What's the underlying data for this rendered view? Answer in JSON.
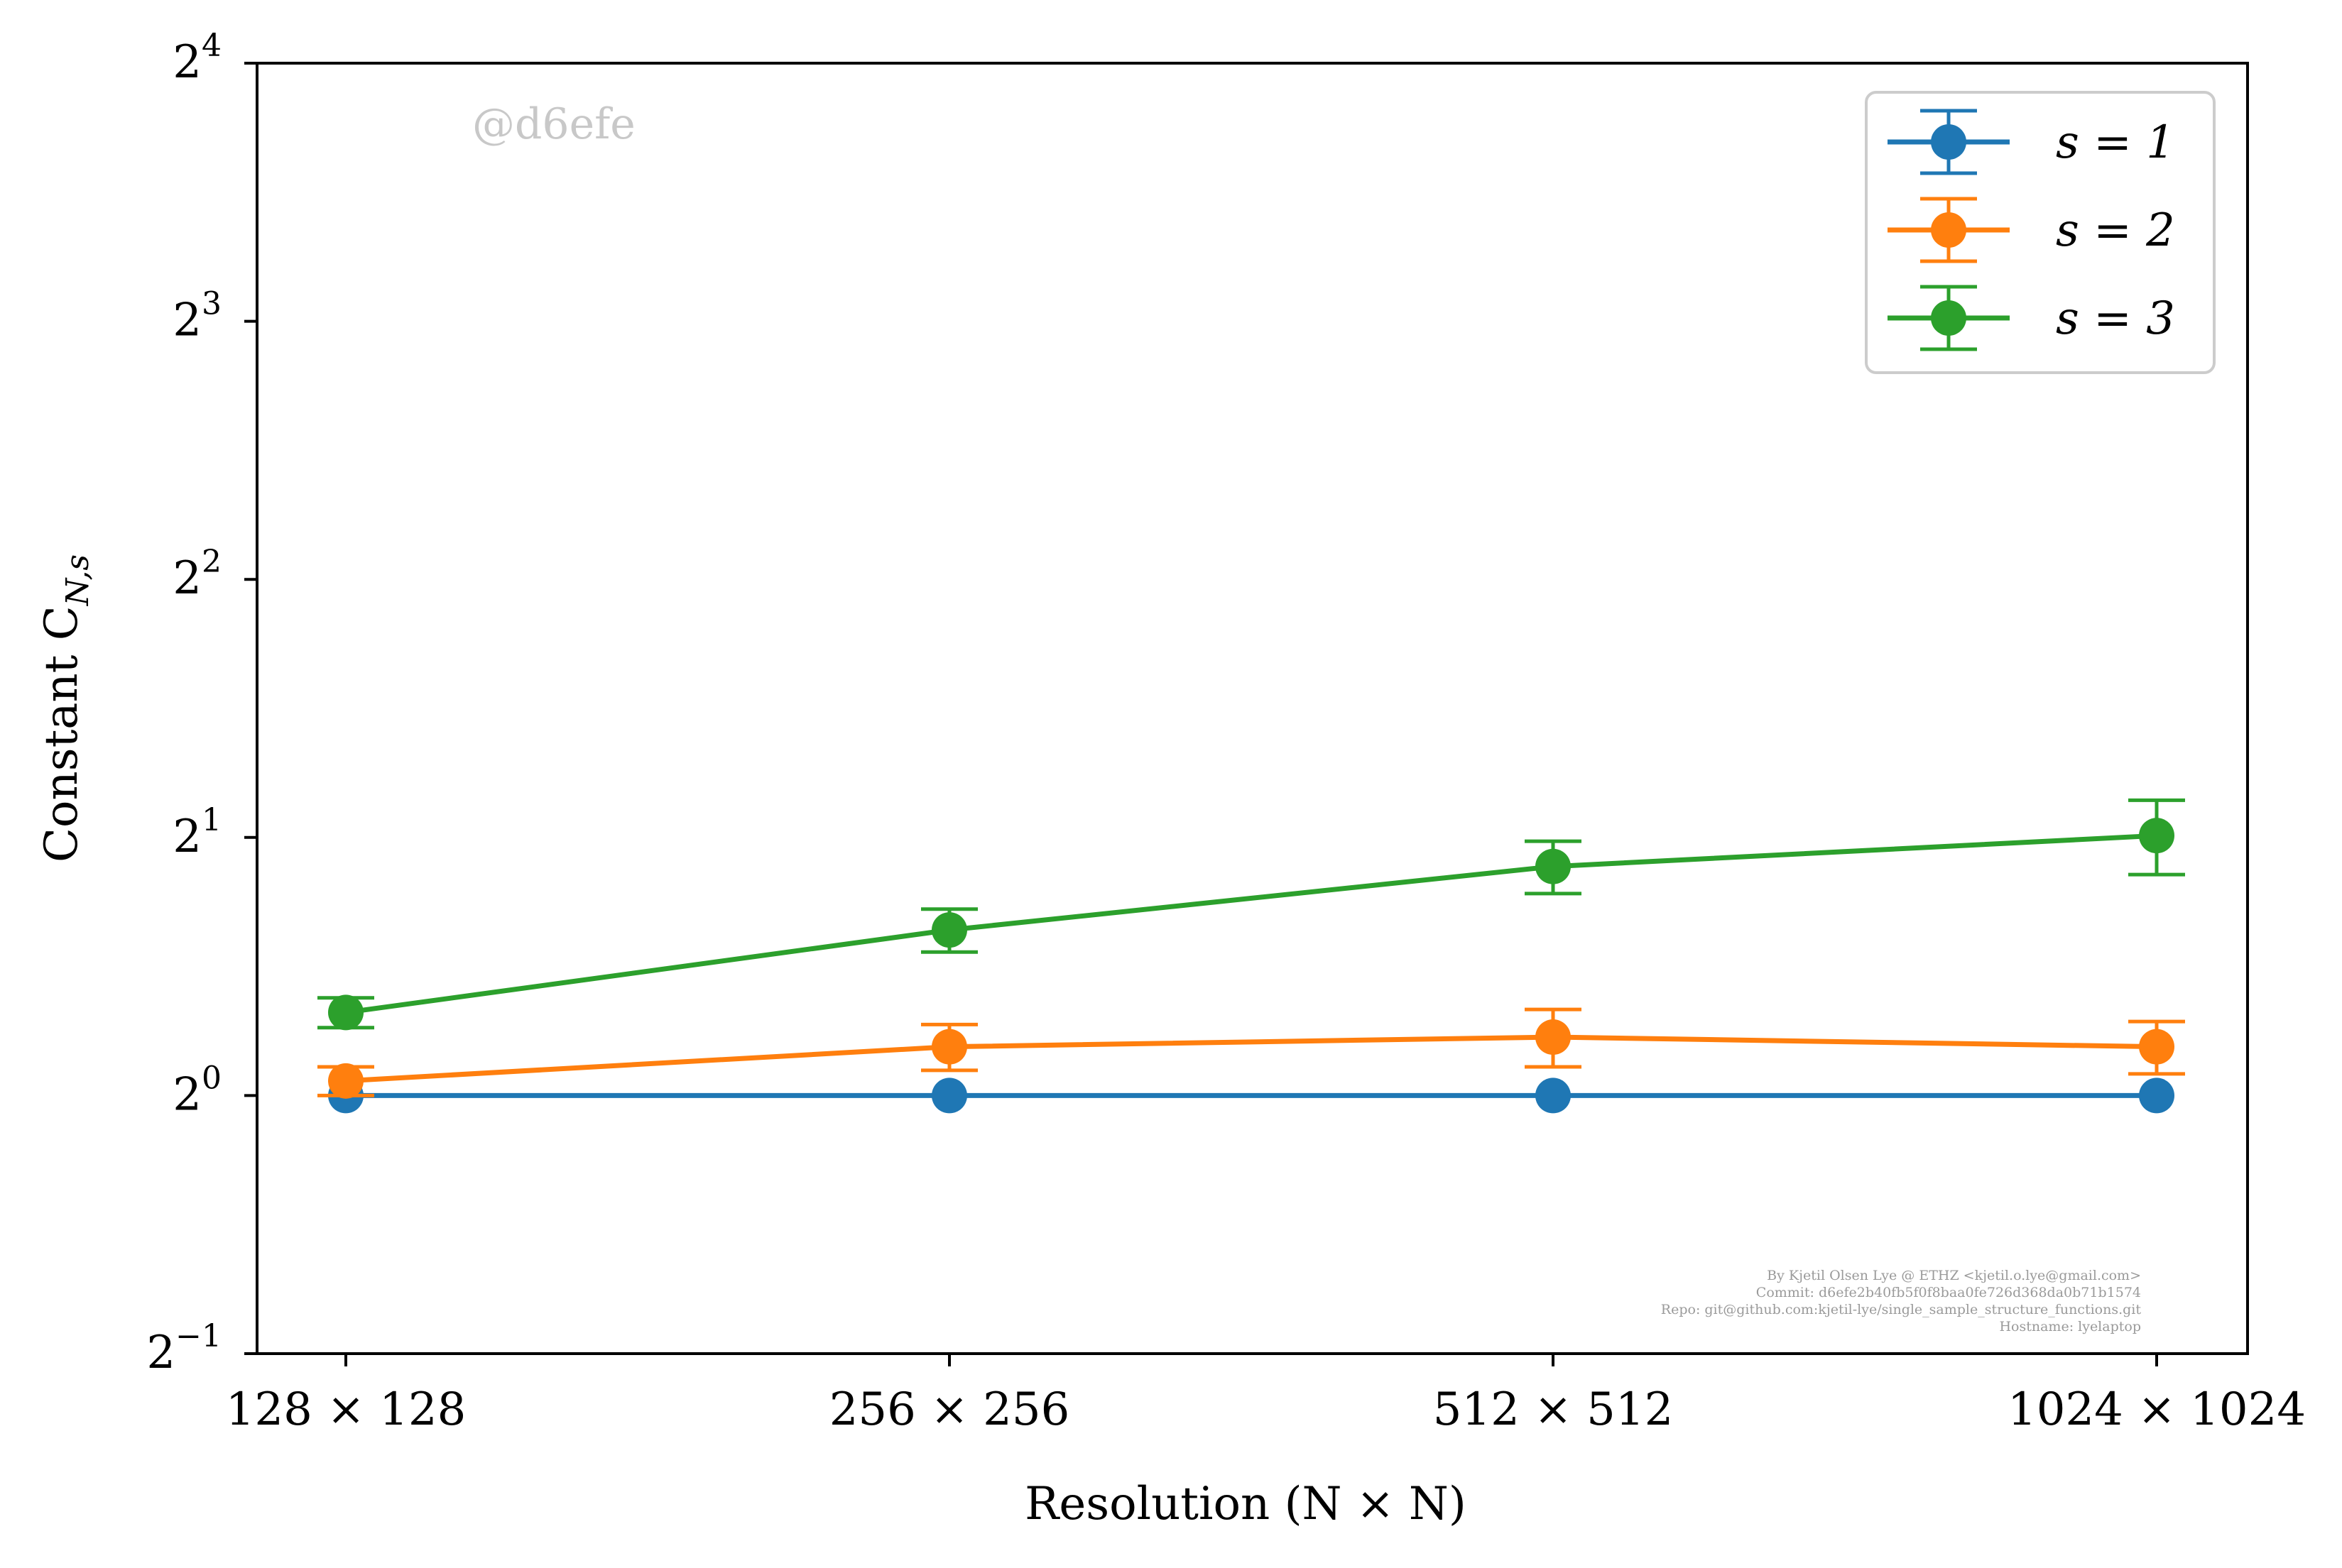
{
  "chart_data": {
    "type": "line",
    "xlabel": "Resolution (N × N)",
    "ylabel": "Constant C",
    "ylabel_subscript": "N,s",
    "categories": [
      "128 × 128",
      "256 × 256",
      "512 × 512",
      "1024 × 1024"
    ],
    "y_scale": "log2",
    "ylim": [
      0.5,
      16
    ],
    "yticks": [
      {
        "value": 0.5,
        "base": "2",
        "exp": "−1"
      },
      {
        "value": 1,
        "base": "2",
        "exp": "0"
      },
      {
        "value": 2,
        "base": "2",
        "exp": "1"
      },
      {
        "value": 4,
        "base": "2",
        "exp": "2"
      },
      {
        "value": 8,
        "base": "2",
        "exp": "3"
      },
      {
        "value": 16,
        "base": "2",
        "exp": "4"
      }
    ],
    "grid": false,
    "legend_position": "top-right",
    "series": [
      {
        "name": "s = 1",
        "color": "#1f77b4",
        "values": [
          1.0,
          1.0,
          1.0,
          1.0
        ],
        "errors": [
          0.0,
          0.0,
          0.0,
          0.0
        ]
      },
      {
        "name": "s = 2",
        "color": "#ff7f0e",
        "values": [
          1.04,
          1.14,
          1.17,
          1.14
        ],
        "errors": [
          0.04,
          0.07,
          0.09,
          0.08
        ]
      },
      {
        "name": "s = 3",
        "color": "#2ca02c",
        "values": [
          1.25,
          1.56,
          1.85,
          2.01
        ],
        "errors": [
          0.05,
          0.09,
          0.13,
          0.2
        ]
      }
    ]
  },
  "watermark": "@d6efe",
  "credits": [
    "By Kjetil Olsen Lye @ ETHZ <kjetil.o.lye@gmail.com>",
    "Commit:  d6efe2b40fb5f0f8baa0fe726d368da0b71b1574",
    "Repo: git@github.com:kjetil-lye/single_sample_structure_functions.git",
    "Hostname: lyelaptop"
  ]
}
